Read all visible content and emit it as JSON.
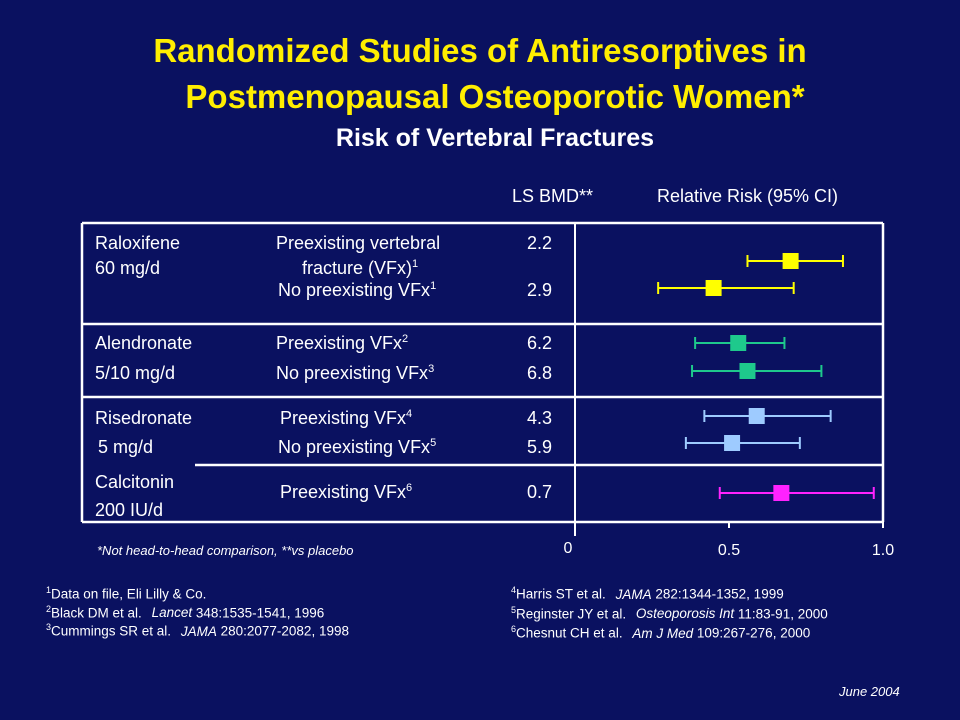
{
  "title": {
    "line1": "Randomized Studies of Antiresorptives in",
    "line2": "Postmenopausal Osteoporotic Women*",
    "subtitle": "Risk of Vertebral Fractures"
  },
  "columns": {
    "bmd": "LS BMD**",
    "rr": "Relative Risk (95% CI)"
  },
  "rows": [
    {
      "drug": "Raloxifene",
      "dose": "60 mg/d",
      "population": "Preexisting vertebral",
      "population2": "fracture (VFx)",
      "ref": "1",
      "bmd": "2.2"
    },
    {
      "population": "No preexisting VFx",
      "ref": "1",
      "bmd": "2.9"
    },
    {
      "drug": "Alendronate",
      "population": "Preexisting VFx",
      "ref": "2",
      "bmd": "6.2"
    },
    {
      "drug": "5/10 mg/d",
      "population": "No preexisting VFx",
      "ref": "3",
      "bmd": "6.8"
    },
    {
      "drug": "Risedronate",
      "population": "Preexisting VFx",
      "ref": "4",
      "bmd": "4.3"
    },
    {
      "drug": "5 mg/d",
      "population": "No preexisting VFx",
      "ref": "5",
      "bmd": "5.9"
    },
    {
      "drug": "Calcitonin",
      "dose": "200 IU/d",
      "population": "Preexisting VFx",
      "ref": "6",
      "bmd": "0.7"
    }
  ],
  "chart_data": {
    "type": "forest",
    "x": {
      "min": 0,
      "max": 1.0,
      "ticks": [
        "0",
        "0.5",
        "1.0"
      ]
    },
    "estimates": [
      {
        "rr": 0.7,
        "low": 0.56,
        "high": 0.87,
        "color": "#ffff00"
      },
      {
        "rr": 0.45,
        "low": 0.27,
        "high": 0.71,
        "color": "#ffff00"
      },
      {
        "rr": 0.53,
        "low": 0.39,
        "high": 0.68,
        "color": "#1ec98c"
      },
      {
        "rr": 0.56,
        "low": 0.38,
        "high": 0.8,
        "color": "#1ec98c"
      },
      {
        "rr": 0.59,
        "low": 0.42,
        "high": 0.83,
        "color": "#9ecbff"
      },
      {
        "rr": 0.51,
        "low": 0.36,
        "high": 0.73,
        "color": "#9ecbff"
      },
      {
        "rr": 0.67,
        "low": 0.47,
        "high": 0.97,
        "color": "#ff22ff"
      }
    ]
  },
  "note": "*Not head-to-head comparison, **vs placebo",
  "footnotes_left": [
    {
      "num": "1",
      "text": "Data on file, Eli Lilly & Co.",
      "journal": "",
      "cite": ""
    },
    {
      "num": "2",
      "text": "Black DM et al.",
      "journal": "Lancet",
      "cite": "348:1535-1541, 1996"
    },
    {
      "num": "3",
      "text": "Cummings SR et al.",
      "journal": "JAMA",
      "cite": "280:2077-2082, 1998"
    }
  ],
  "footnotes_right": [
    {
      "num": "4",
      "text": "Harris ST et al.",
      "journal": "JAMA",
      "cite": "282:1344-1352, 1999"
    },
    {
      "num": "5",
      "text": "Reginster JY et al.",
      "journal": "Osteoporosis Int",
      "cite": "11:83-91, 2000"
    },
    {
      "num": "6",
      "text": "Chesnut CH et al.",
      "journal": "Am J Med",
      "cite": "109:267-276, 2000"
    }
  ],
  "date": "June 2004"
}
